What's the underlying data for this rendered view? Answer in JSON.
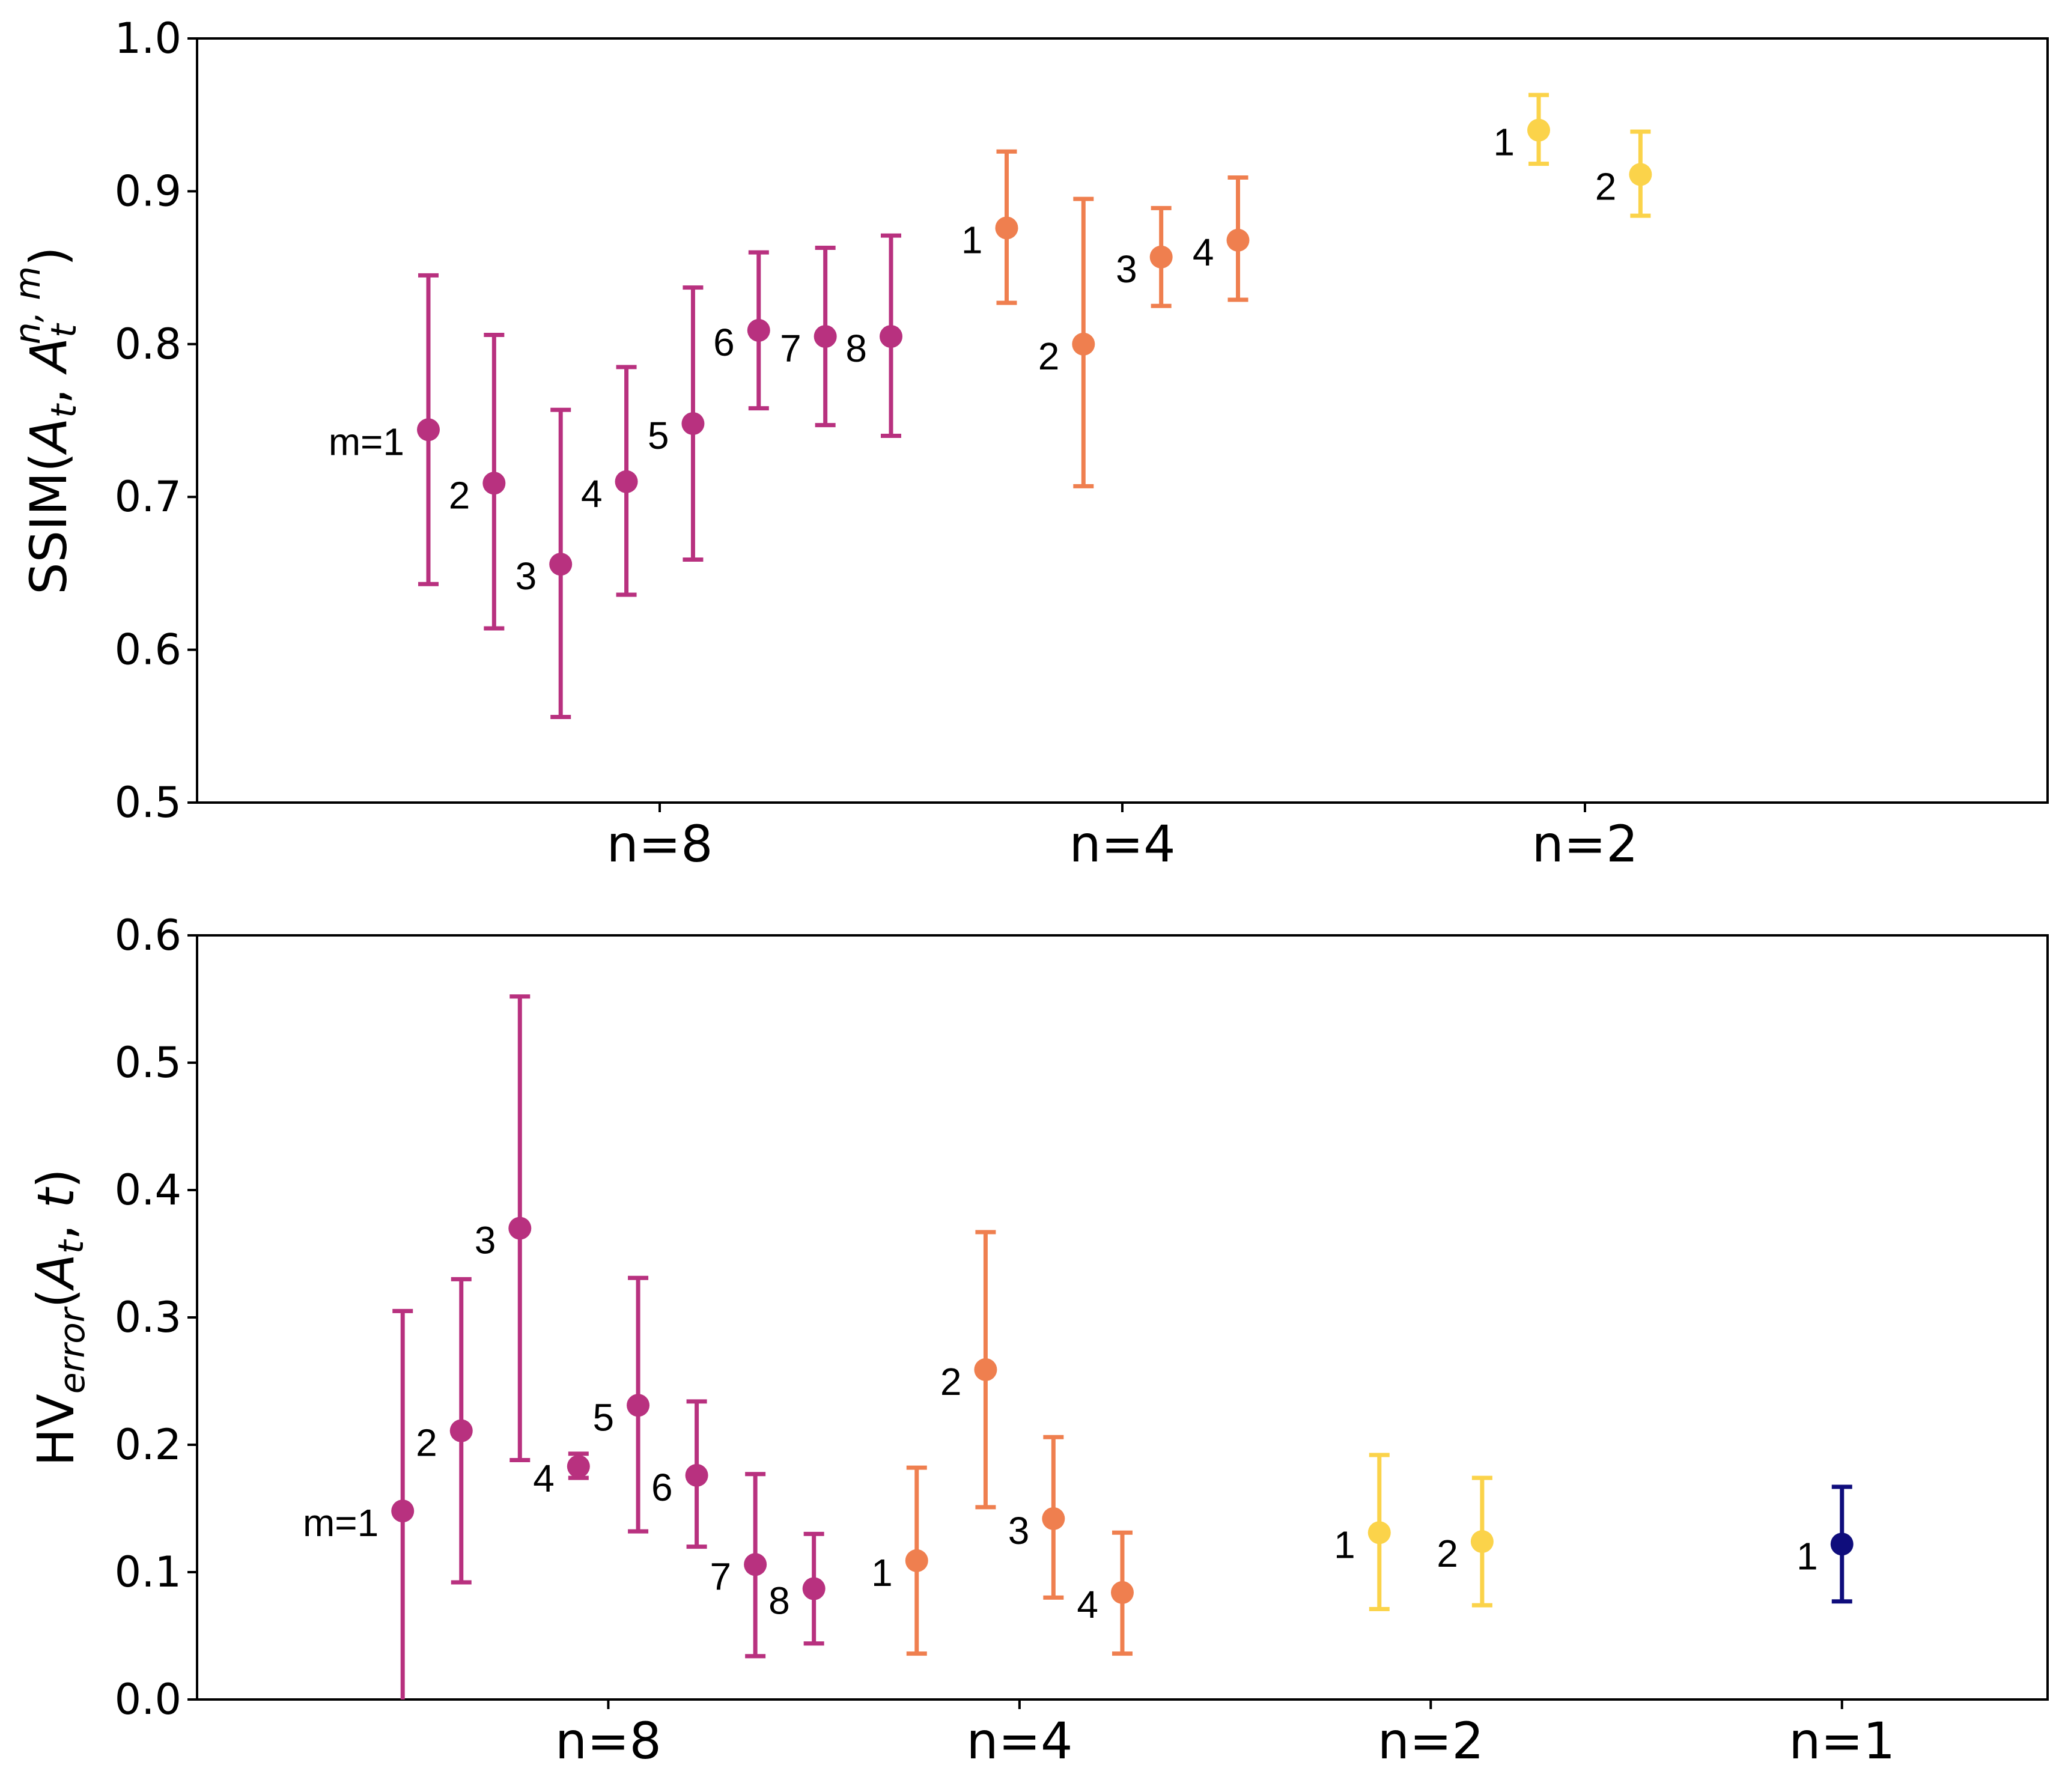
{
  "colors": {
    "n8": "#b8317f",
    "n4": "#ef7f4f",
    "n2": "#fbd34a",
    "n1": "#0f0d7c",
    "axis": "#000000"
  },
  "chart_data": [
    {
      "id": "ssim",
      "type": "scatter",
      "title": "",
      "ylabel": "SSIM(A_t, A_t^{n,m})",
      "ylabel_parts": {
        "base": "SSIM(",
        "a1": "A",
        "s1": "t",
        "mid": ", ",
        "a2": "A",
        "s2": "t",
        "sup": "n, m",
        "end": ")"
      },
      "ylim": [
        0.5,
        1.0
      ],
      "yticks": [
        0.5,
        0.6,
        0.7,
        0.8,
        0.9,
        1.0
      ],
      "ytick_labels": [
        "0.5",
        "0.6",
        "0.7",
        "0.8",
        "0.9",
        "1.0"
      ],
      "xlim": [
        0,
        20
      ],
      "categories": [
        {
          "label": "n=8",
          "x": 5
        },
        {
          "label": "n=4",
          "x": 10
        },
        {
          "label": "n=2",
          "x": 15
        }
      ],
      "points": [
        {
          "group": "n8",
          "m": 1,
          "label": "m=1",
          "x": 2.5,
          "y": 0.744,
          "lo": 0.643,
          "hi": 0.845
        },
        {
          "group": "n8",
          "m": 2,
          "label": "2",
          "x": 3.21,
          "y": 0.709,
          "lo": 0.614,
          "hi": 0.806
        },
        {
          "group": "n8",
          "m": 3,
          "label": "3",
          "x": 3.93,
          "y": 0.656,
          "lo": 0.556,
          "hi": 0.757
        },
        {
          "group": "n8",
          "m": 4,
          "label": "4",
          "x": 4.64,
          "y": 0.71,
          "lo": 0.636,
          "hi": 0.785
        },
        {
          "group": "n8",
          "m": 5,
          "label": "5",
          "x": 5.36,
          "y": 0.748,
          "lo": 0.659,
          "hi": 0.837
        },
        {
          "group": "n8",
          "m": 6,
          "label": "6",
          "x": 6.07,
          "y": 0.809,
          "lo": 0.758,
          "hi": 0.86
        },
        {
          "group": "n8",
          "m": 7,
          "label": "7",
          "x": 6.79,
          "y": 0.805,
          "lo": 0.747,
          "hi": 0.863
        },
        {
          "group": "n8",
          "m": 8,
          "label": "8",
          "x": 7.5,
          "y": 0.805,
          "lo": 0.74,
          "hi": 0.871
        },
        {
          "group": "n4",
          "m": 1,
          "label": "1",
          "x": 8.75,
          "y": 0.876,
          "lo": 0.827,
          "hi": 0.926
        },
        {
          "group": "n4",
          "m": 2,
          "label": "2",
          "x": 9.58,
          "y": 0.8,
          "lo": 0.707,
          "hi": 0.895
        },
        {
          "group": "n4",
          "m": 3,
          "label": "3",
          "x": 10.42,
          "y": 0.857,
          "lo": 0.825,
          "hi": 0.889
        },
        {
          "group": "n4",
          "m": 4,
          "label": "4",
          "x": 11.25,
          "y": 0.868,
          "lo": 0.829,
          "hi": 0.909
        },
        {
          "group": "n2",
          "m": 1,
          "label": "1",
          "x": 14.5,
          "y": 0.94,
          "lo": 0.918,
          "hi": 0.963
        },
        {
          "group": "n2",
          "m": 2,
          "label": "2",
          "x": 15.6,
          "y": 0.911,
          "lo": 0.884,
          "hi": 0.939
        }
      ]
    },
    {
      "id": "hv",
      "type": "scatter",
      "title": "",
      "ylabel": "HV_error(A_t, t)",
      "ylabel_parts": {
        "base": "HV",
        "sub": "error",
        "open": "(",
        "a": "A",
        "s": "t",
        "mid": ", ",
        "t": "t",
        "end": ")"
      },
      "ylim": [
        0.0,
        0.6
      ],
      "yticks": [
        0.0,
        0.1,
        0.2,
        0.3,
        0.4,
        0.5,
        0.6
      ],
      "ytick_labels": [
        "0.0",
        "0.1",
        "0.2",
        "0.3",
        "0.4",
        "0.5",
        "0.6"
      ],
      "xlim": [
        0,
        18
      ],
      "categories": [
        {
          "label": "n=8",
          "x": 4
        },
        {
          "label": "n=4",
          "x": 8
        },
        {
          "label": "n=2",
          "x": 12
        },
        {
          "label": "n=1",
          "x": 16
        }
      ],
      "points": [
        {
          "group": "n8",
          "m": 1,
          "label": "m=1",
          "x": 2.0,
          "y": 0.148,
          "lo": 0.0,
          "hi": 0.305
        },
        {
          "group": "n8",
          "m": 2,
          "label": "2",
          "x": 2.57,
          "y": 0.211,
          "lo": 0.092,
          "hi": 0.33
        },
        {
          "group": "n8",
          "m": 3,
          "label": "3",
          "x": 3.14,
          "y": 0.37,
          "lo": 0.188,
          "hi": 0.552
        },
        {
          "group": "n8",
          "m": 4,
          "label": "4",
          "x": 3.71,
          "y": 0.183,
          "lo": 0.174,
          "hi": 0.193
        },
        {
          "group": "n8",
          "m": 5,
          "label": "5",
          "x": 4.29,
          "y": 0.231,
          "lo": 0.132,
          "hi": 0.331
        },
        {
          "group": "n8",
          "m": 6,
          "label": "6",
          "x": 4.86,
          "y": 0.176,
          "lo": 0.12,
          "hi": 0.234
        },
        {
          "group": "n8",
          "m": 7,
          "label": "7",
          "x": 5.43,
          "y": 0.106,
          "lo": 0.034,
          "hi": 0.177
        },
        {
          "group": "n8",
          "m": 8,
          "label": "8",
          "x": 6.0,
          "y": 0.087,
          "lo": 0.044,
          "hi": 0.13
        },
        {
          "group": "n4",
          "m": 1,
          "label": "1",
          "x": 7.0,
          "y": 0.109,
          "lo": 0.036,
          "hi": 0.182
        },
        {
          "group": "n4",
          "m": 2,
          "label": "2",
          "x": 7.67,
          "y": 0.259,
          "lo": 0.151,
          "hi": 0.367
        },
        {
          "group": "n4",
          "m": 3,
          "label": "3",
          "x": 8.33,
          "y": 0.142,
          "lo": 0.08,
          "hi": 0.206
        },
        {
          "group": "n4",
          "m": 4,
          "label": "4",
          "x": 9.0,
          "y": 0.084,
          "lo": 0.036,
          "hi": 0.131
        },
        {
          "group": "n2",
          "m": 1,
          "label": "1",
          "x": 11.5,
          "y": 0.131,
          "lo": 0.071,
          "hi": 0.192
        },
        {
          "group": "n2",
          "m": 2,
          "label": "2",
          "x": 12.5,
          "y": 0.124,
          "lo": 0.074,
          "hi": 0.174
        },
        {
          "group": "n1",
          "m": 1,
          "label": "1",
          "x": 16.0,
          "y": 0.122,
          "lo": 0.077,
          "hi": 0.167
        }
      ]
    }
  ]
}
